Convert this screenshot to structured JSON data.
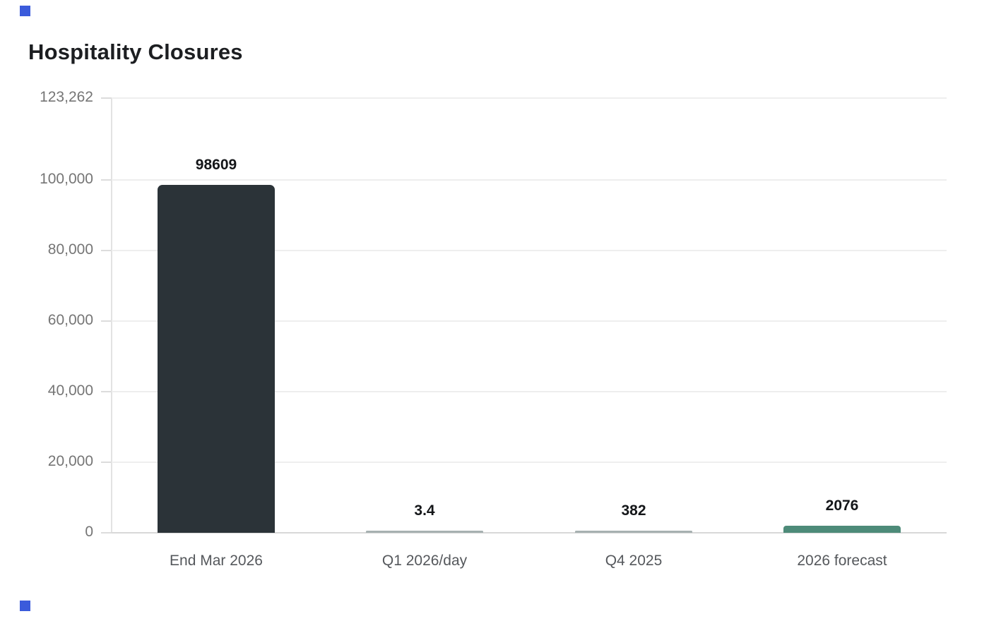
{
  "title": "Hospitality Closures",
  "colors": {
    "corner_marker": "#3b5bdb",
    "title_text": "#1c1e21",
    "value_label_text": "#141619",
    "y_tick_text": "#757575",
    "x_label_text": "#55585c",
    "gridline": "#eeeeee",
    "baseline": "#d8d8d8",
    "axis_line": "#e2e2e2"
  },
  "chart_data": {
    "type": "bar",
    "title": "Hospitality Closures",
    "categories": [
      "End Mar 2026",
      "Q1 2026/day",
      "Q4 2025",
      "2026 forecast"
    ],
    "values": [
      98609,
      3.4,
      382,
      2076
    ],
    "value_labels": [
      "98609",
      "3.4",
      "382",
      "2076"
    ],
    "bar_colors": [
      "#2b3338",
      "#a7b1b1",
      "#a7b1b1",
      "#4d8b79"
    ],
    "xlabel": "",
    "ylabel": "",
    "ylim": [
      0,
      123262
    ],
    "yticks": [
      0,
      20000,
      40000,
      60000,
      80000,
      100000,
      123262
    ],
    "ytick_labels": [
      "0",
      "20,000",
      "40,000",
      "60,000",
      "80,000",
      "100,000",
      "123,262"
    ],
    "grid": true,
    "legend_position": "none"
  }
}
